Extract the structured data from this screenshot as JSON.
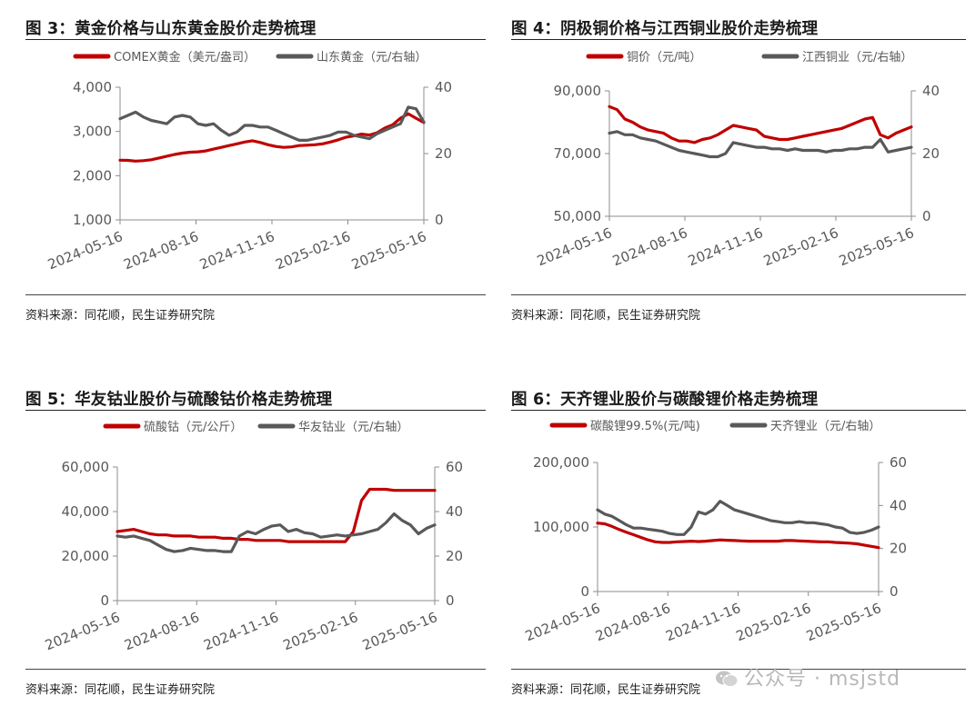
{
  "charts": [
    {
      "title": "图 3：黄金价格与山东黄金股价走势梳理",
      "source": "资料来源：同花顺，民生证券研究院",
      "chart_data": {
        "type": "line",
        "x_ticks": [
          "2024-05-16",
          "2024-08-16",
          "2024-11-16",
          "2025-02-16",
          "2025-05-16"
        ],
        "left_ylim": [
          1000,
          4000
        ],
        "left_ticks": [
          "1,000",
          "2,000",
          "3,000",
          "4,000"
        ],
        "right_ylim": [
          0,
          40
        ],
        "right_ticks": [
          "0",
          "20",
          "40"
        ],
        "series": [
          {
            "name": "COMEX黄金（美元/盎司）",
            "axis": "left",
            "color": "#C00000",
            "values": [
              2350,
              2345,
              2330,
              2340,
              2360,
              2400,
              2440,
              2480,
              2510,
              2530,
              2540,
              2560,
              2600,
              2640,
              2680,
              2720,
              2760,
              2790,
              2750,
              2700,
              2660,
              2640,
              2650,
              2680,
              2690,
              2700,
              2720,
              2760,
              2810,
              2870,
              2900,
              2940,
              2920,
              2970,
              3080,
              3150,
              3300,
              3400,
              3300,
              3200
            ]
          },
          {
            "name": "山东黄金（元/右轴）",
            "axis": "right",
            "color": "#595959",
            "values": [
              30.5,
              31.5,
              32.5,
              31,
              30,
              29.5,
              29,
              31,
              31.5,
              31,
              29,
              28.5,
              29,
              27,
              25.5,
              26.5,
              28.5,
              28.5,
              28,
              28,
              27,
              26,
              25,
              24,
              24,
              24.5,
              25,
              25.5,
              26.5,
              26.5,
              25.5,
              25,
              24.5,
              26,
              27,
              28,
              29,
              34,
              33.5,
              29.5
            ]
          }
        ]
      }
    },
    {
      "title": "图 4：阴极铜价格与江西铜业股价走势梳理",
      "source": "资料来源：同花顺，民生证券研究院",
      "chart_data": {
        "type": "line",
        "x_ticks": [
          "2024-05-16",
          "2024-08-16",
          "2024-11-16",
          "2025-02-16",
          "2025-05-16"
        ],
        "left_ylim": [
          50000,
          90000
        ],
        "left_ticks": [
          "50,000",
          "70,000",
          "90,000"
        ],
        "right_ylim": [
          0,
          40
        ],
        "right_ticks": [
          "0",
          "20",
          "40"
        ],
        "series": [
          {
            "name": "铜价（元/吨）",
            "axis": "left",
            "color": "#C00000",
            "values": [
              85000,
              84000,
              81000,
              80000,
              78500,
              77500,
              77000,
              76500,
              75000,
              74000,
              74000,
              73500,
              74500,
              75000,
              76000,
              77500,
              79000,
              78500,
              78000,
              77500,
              75500,
              75000,
              74500,
              74500,
              75000,
              75500,
              76000,
              76500,
              77000,
              77500,
              78000,
              79000,
              80000,
              81000,
              81500,
              76000,
              75000,
              76500,
              77500,
              78500
            ]
          },
          {
            "name": "江西铜业（元/右轴）",
            "axis": "right",
            "color": "#595959",
            "values": [
              26.5,
              27,
              26,
              26,
              25,
              24.5,
              24,
              23,
              22,
              21,
              20.5,
              20,
              19.5,
              19,
              19,
              20,
              23.5,
              23,
              22.5,
              22,
              22,
              21.5,
              21.5,
              21,
              21.5,
              21,
              21,
              21,
              20.5,
              21,
              21,
              21.5,
              21.5,
              22,
              22,
              24.5,
              20.5,
              21,
              21.5,
              22
            ]
          }
        ]
      }
    },
    {
      "title": "图 5：华友钴业股价与硫酸钴价格走势梳理",
      "source": "资料来源：同花顺，民生证券研究院",
      "chart_data": {
        "type": "line",
        "x_ticks": [
          "2024-05-16",
          "2024-08-16",
          "2024-11-16",
          "2025-02-16",
          "2025-05-16"
        ],
        "left_ylim": [
          0,
          60000
        ],
        "left_ticks": [
          "0",
          "20,000",
          "40,000",
          "60,000"
        ],
        "right_ylim": [
          0,
          60
        ],
        "right_ticks": [
          "0",
          "20",
          "40",
          "60"
        ],
        "series": [
          {
            "name": "硫酸钴（元/公斤）",
            "axis": "left",
            "color": "#C00000",
            "values": [
              31000,
              31500,
              32000,
              31000,
              30000,
              29500,
              29500,
              29000,
              29000,
              29000,
              28500,
              28500,
              28500,
              28000,
              28000,
              27500,
              27500,
              27000,
              27000,
              27000,
              27000,
              26500,
              26500,
              26500,
              26500,
              26500,
              26500,
              26500,
              26500,
              31000,
              45000,
              50000,
              50000,
              50000,
              49500,
              49500,
              49500,
              49500,
              49500,
              49500
            ]
          },
          {
            "name": "华友钴业（元/右轴）",
            "axis": "right",
            "color": "#595959",
            "values": [
              29,
              28.5,
              29,
              28,
              27,
              25,
              23,
              22,
              22.5,
              23.5,
              23,
              22.5,
              22.5,
              22,
              22,
              29,
              31,
              30,
              32,
              33.5,
              34,
              31,
              32,
              30.5,
              30,
              28.5,
              29,
              29.5,
              29,
              29.5,
              30,
              31,
              32,
              35,
              39,
              36,
              34,
              30,
              32.5,
              34
            ]
          }
        ]
      }
    },
    {
      "title": "图 6：天齐锂业股价与碳酸锂价格走势梳理",
      "source": "资料来源：同花顺，民生证券研究院",
      "chart_data": {
        "type": "line",
        "x_ticks": [
          "2024-05-16",
          "2024-08-16",
          "2024-11-16",
          "2025-02-16",
          "2025-05-16"
        ],
        "left_ylim": [
          0,
          200000
        ],
        "left_ticks": [
          "0",
          "100,000",
          "200,000"
        ],
        "right_ylim": [
          0,
          60
        ],
        "right_ticks": [
          "0",
          "20",
          "40",
          "60"
        ],
        "series": [
          {
            "name": "碳酸锂99.5%(元/吨)",
            "axis": "left",
            "color": "#C00000",
            "values": [
              106000,
              105000,
              101000,
              96000,
              92000,
              88000,
              84000,
              80000,
              77000,
              76000,
              76000,
              77000,
              77500,
              78000,
              77500,
              78000,
              79000,
              80000,
              79500,
              79000,
              78500,
              78000,
              78000,
              78000,
              78000,
              78000,
              79000,
              79000,
              78500,
              78000,
              77500,
              77000,
              77000,
              76000,
              75500,
              75000,
              74000,
              72000,
              70000,
              68000
            ]
          },
          {
            "name": "天齐锂业（元/右轴）",
            "axis": "right",
            "color": "#595959",
            "values": [
              38,
              36,
              35,
              33,
              31,
              29.5,
              29.5,
              29,
              28.5,
              28,
              27,
              26.5,
              26.5,
              30,
              37,
              36,
              38,
              42,
              40,
              38,
              37,
              36,
              35,
              34,
              33,
              32.5,
              32,
              32,
              32.5,
              32,
              32,
              31.5,
              31,
              30,
              29.5,
              27.5,
              27,
              27.5,
              28.5,
              30
            ]
          }
        ]
      }
    }
  ],
  "watermark": "公众号 · msjstd"
}
